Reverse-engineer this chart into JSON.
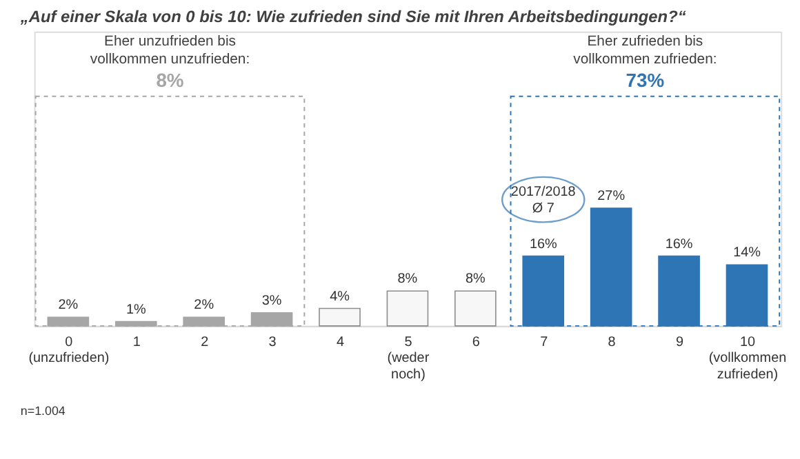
{
  "chart_data": {
    "type": "bar",
    "title": "„Auf einer Skala von 0 bis 10: Wie zufrieden sind Sie mit Ihren Arbeitsbedingungen?“",
    "categories": [
      "0 (unzufrieden)",
      "1",
      "2",
      "3",
      "4",
      "5 (weder noch)",
      "6",
      "7",
      "8",
      "9",
      "10 (vollkommen zufrieden)"
    ],
    "values": [
      2,
      1,
      2,
      3,
      4,
      8,
      8,
      16,
      27,
      16,
      14
    ],
    "value_labels": [
      "2%",
      "1%",
      "2%",
      "3%",
      "4%",
      "8%",
      "8%",
      "16%",
      "27%",
      "16%",
      "14%"
    ],
    "colors": [
      "#a6a6a6",
      "#a6a6a6",
      "#a6a6a6",
      "#a6a6a6",
      "#f7f7f7",
      "#f7f7f7",
      "#f7f7f7",
      "#2e75b6",
      "#2e75b6",
      "#2e75b6",
      "#2e75b6"
    ],
    "annotations": [
      "Eher unzufrieden bis\nvollkommen unzufrieden:",
      "8%",
      "Eher zufrieden bis\nvollkommen zufrieden:",
      "73%",
      "2017/2018\nØ 7",
      "n=1.004"
    ]
  }
}
